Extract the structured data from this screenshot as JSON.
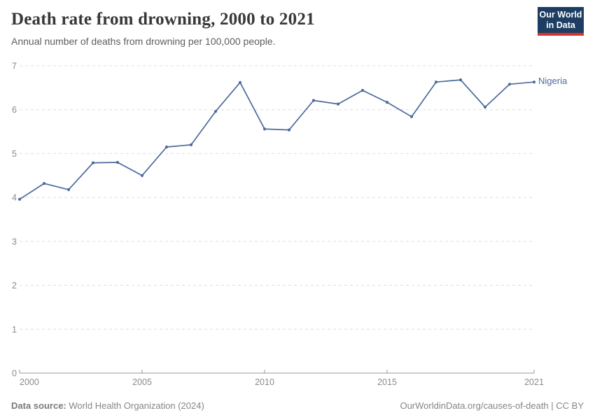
{
  "header": {
    "title": "Death rate from drowning, 2000 to 2021",
    "subtitle": "Annual number of deaths from drowning per 100,000 people."
  },
  "logo": {
    "line1": "Our World",
    "line2": "in Data",
    "bg_color": "#1d3d63",
    "accent_color": "#d7332d"
  },
  "chart_data": {
    "type": "line",
    "title": "Death rate from drowning, 2000 to 2021",
    "xlabel": "",
    "ylabel": "Annual deaths from drowning per 100,000 people",
    "x": [
      2000,
      2001,
      2002,
      2003,
      2004,
      2005,
      2006,
      2007,
      2008,
      2009,
      2010,
      2011,
      2012,
      2013,
      2014,
      2015,
      2016,
      2017,
      2018,
      2019,
      2020,
      2021
    ],
    "series": [
      {
        "name": "Nigeria",
        "color": "#4c6a9c",
        "values": [
          3.96,
          4.32,
          4.18,
          4.79,
          4.8,
          4.5,
          5.15,
          5.2,
          5.96,
          6.62,
          5.56,
          5.54,
          6.21,
          6.13,
          6.44,
          6.17,
          5.84,
          6.63,
          6.68,
          6.06,
          6.58,
          6.63
        ]
      }
    ],
    "ylim": [
      0,
      7
    ],
    "yticks": [
      0,
      1,
      2,
      3,
      4,
      5,
      6,
      7
    ],
    "xticks": [
      2000,
      2005,
      2010,
      2015,
      2021
    ],
    "grid": "horizontal-dashed",
    "legend_position": "end-of-line-label"
  },
  "footer": {
    "datasource_label": "Data source:",
    "datasource_value": "World Health Organization (2024)",
    "attribution": "OurWorldinData.org/causes-of-death | CC BY"
  }
}
